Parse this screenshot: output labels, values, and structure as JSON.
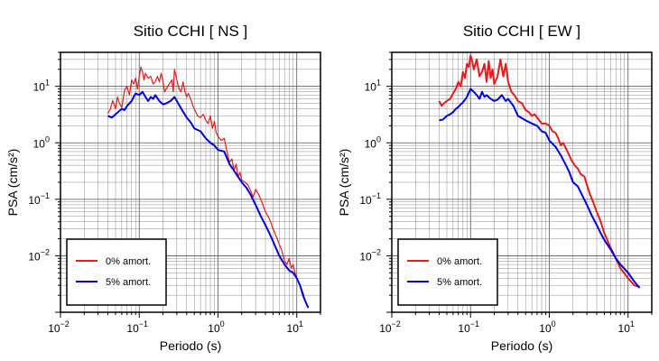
{
  "figure": {
    "background": "#ffffff"
  },
  "chart_data": [
    {
      "type": "line",
      "title": "Sitio CCHI [ NS ]",
      "xlabel": "Periodo (s)",
      "ylabel": "PSA (cm/s²)",
      "x_scale": "log",
      "y_scale": "log",
      "xlim": [
        0.01,
        20
      ],
      "ylim": [
        0.001,
        40
      ],
      "x_ticks": [
        {
          "value": 0.01,
          "base": "10",
          "exp": "−2"
        },
        {
          "value": 0.1,
          "base": "10",
          "exp": "−1"
        },
        {
          "value": 1,
          "base": "10",
          "exp": "0"
        },
        {
          "value": 10,
          "base": "10",
          "exp": "1"
        }
      ],
      "y_ticks": [
        {
          "value": 0.01,
          "base": "10",
          "exp": "−2"
        },
        {
          "value": 0.1,
          "base": "10",
          "exp": "−1"
        },
        {
          "value": 1,
          "base": "10",
          "exp": "0"
        },
        {
          "value": 10,
          "base": "10",
          "exp": "1"
        }
      ],
      "grid": true,
      "legend_position": "bottom-left",
      "series": [
        {
          "name": "0% amort.",
          "color": "#e41a1c",
          "width": 1.2,
          "x": [
            0.04,
            0.043,
            0.046,
            0.05,
            0.053,
            0.056,
            0.06,
            0.065,
            0.07,
            0.075,
            0.08,
            0.085,
            0.09,
            0.095,
            0.1,
            0.105,
            0.11,
            0.115,
            0.12,
            0.13,
            0.14,
            0.15,
            0.16,
            0.17,
            0.18,
            0.19,
            0.2,
            0.21,
            0.22,
            0.24,
            0.26,
            0.27,
            0.28,
            0.3,
            0.32,
            0.34,
            0.36,
            0.38,
            0.4,
            0.42,
            0.45,
            0.48,
            0.5,
            0.55,
            0.6,
            0.65,
            0.7,
            0.75,
            0.8,
            0.85,
            0.9,
            0.95,
            1.0,
            1.1,
            1.2,
            1.3,
            1.4,
            1.5,
            1.6,
            1.7,
            1.8,
            1.9,
            2.0,
            2.2,
            2.4,
            2.6,
            2.8,
            3.0,
            3.3,
            3.6,
            4.0,
            4.5,
            5.0,
            5.5,
            6.0,
            6.5,
            7.0,
            7.5,
            8.0,
            8.5,
            9.0,
            9.5,
            10,
            11,
            12,
            13,
            14
          ],
          "y": [
            3.3,
            4.0,
            5.6,
            4.0,
            6.5,
            5.0,
            4.2,
            8.5,
            10,
            7.0,
            13,
            11,
            14,
            9.0,
            15,
            22,
            18,
            13,
            17,
            14,
            15,
            11,
            12,
            15,
            12,
            17,
            12,
            8.0,
            9.0,
            11,
            13,
            8.0,
            20,
            13,
            9.0,
            8.0,
            12,
            8.0,
            6.5,
            7.5,
            6.0,
            4.5,
            4.0,
            3.0,
            2.8,
            3.2,
            2.5,
            2.2,
            3.0,
            1.8,
            2.4,
            1.5,
            1.3,
            1.1,
            1.2,
            0.7,
            0.45,
            0.52,
            0.32,
            0.42,
            0.25,
            0.3,
            0.22,
            0.2,
            0.18,
            0.14,
            0.11,
            0.15,
            0.12,
            0.09,
            0.06,
            0.045,
            0.03,
            0.022,
            0.016,
            0.012,
            0.008,
            0.007,
            0.009,
            0.006,
            0.007,
            0.005,
            0.004,
            0.003,
            0.0022,
            0.0015,
            0.0012
          ]
        },
        {
          "name": "5% amort.",
          "color": "#0000dd",
          "width": 2,
          "x": [
            0.04,
            0.045,
            0.05,
            0.055,
            0.06,
            0.065,
            0.07,
            0.075,
            0.08,
            0.085,
            0.09,
            0.1,
            0.11,
            0.12,
            0.13,
            0.14,
            0.15,
            0.16,
            0.18,
            0.2,
            0.22,
            0.25,
            0.28,
            0.3,
            0.35,
            0.4,
            0.45,
            0.5,
            0.6,
            0.7,
            0.8,
            0.9,
            1.0,
            1.2,
            1.4,
            1.6,
            1.8,
            2.0,
            2.3,
            2.6,
            3.0,
            3.5,
            4.0,
            4.5,
            5.0,
            6.0,
            7.0,
            8.0,
            9.0,
            10,
            11,
            12,
            13,
            14
          ],
          "y": [
            3.0,
            2.8,
            3.2,
            3.6,
            4.0,
            3.8,
            4.5,
            5.0,
            5.5,
            6.5,
            7.5,
            7.0,
            8.0,
            6.5,
            5.5,
            6.5,
            6.0,
            7.0,
            5.5,
            4.8,
            5.0,
            5.5,
            6.5,
            5.5,
            3.8,
            2.8,
            2.3,
            1.8,
            1.6,
            1.2,
            1.0,
            0.9,
            0.75,
            0.7,
            0.42,
            0.32,
            0.25,
            0.2,
            0.16,
            0.12,
            0.08,
            0.05,
            0.035,
            0.025,
            0.018,
            0.01,
            0.007,
            0.0055,
            0.005,
            0.004,
            0.003,
            0.002,
            0.0015,
            0.0012
          ]
        }
      ]
    },
    {
      "type": "line",
      "title": "Sitio CCHI [ EW ]",
      "xlabel": "Periodo (s)",
      "ylabel": "PSA (cm/s²)",
      "x_scale": "log",
      "y_scale": "log",
      "xlim": [
        0.01,
        20
      ],
      "ylim": [
        0.001,
        40
      ],
      "x_ticks": [
        {
          "value": 0.01,
          "base": "10",
          "exp": "−2"
        },
        {
          "value": 0.1,
          "base": "10",
          "exp": "−1"
        },
        {
          "value": 1,
          "base": "10",
          "exp": "0"
        },
        {
          "value": 10,
          "base": "10",
          "exp": "1"
        }
      ],
      "y_ticks": [
        {
          "value": 0.01,
          "base": "10",
          "exp": "−2"
        },
        {
          "value": 0.1,
          "base": "10",
          "exp": "−1"
        },
        {
          "value": 1,
          "base": "10",
          "exp": "0"
        },
        {
          "value": 10,
          "base": "10",
          "exp": "1"
        }
      ],
      "grid": true,
      "legend_position": "bottom-left",
      "series": [
        {
          "name": "0% amort.",
          "color": "#e41a1c",
          "width": 2,
          "x": [
            0.04,
            0.043,
            0.046,
            0.05,
            0.055,
            0.06,
            0.065,
            0.07,
            0.075,
            0.08,
            0.085,
            0.09,
            0.095,
            0.1,
            0.105,
            0.11,
            0.12,
            0.13,
            0.14,
            0.15,
            0.16,
            0.17,
            0.18,
            0.19,
            0.2,
            0.22,
            0.24,
            0.26,
            0.28,
            0.3,
            0.33,
            0.36,
            0.4,
            0.45,
            0.5,
            0.55,
            0.6,
            0.65,
            0.7,
            0.8,
            0.9,
            1.0,
            1.1,
            1.2,
            1.3,
            1.4,
            1.5,
            1.7,
            1.9,
            2.1,
            2.3,
            2.5,
            2.8,
            3.0,
            3.3,
            3.6,
            4.0,
            4.5,
            5.0,
            6.0,
            7.0,
            8.0,
            10,
            12,
            14
          ],
          "y": [
            5.5,
            4.5,
            5.0,
            5.5,
            6.0,
            7.5,
            9.0,
            12,
            10,
            18,
            14,
            25,
            22,
            35,
            28,
            20,
            30,
            15,
            18,
            25,
            12,
            28,
            14,
            20,
            11,
            15,
            30,
            15,
            25,
            12,
            8.0,
            7.0,
            5.5,
            5.0,
            3.8,
            3.5,
            3.0,
            3.2,
            2.8,
            2.2,
            2.2,
            2.0,
            1.6,
            1.5,
            1.2,
            0.9,
            1.0,
            0.7,
            0.5,
            0.4,
            0.35,
            0.28,
            0.25,
            0.18,
            0.12,
            0.09,
            0.06,
            0.04,
            0.025,
            0.014,
            0.009,
            0.006,
            0.004,
            0.003,
            0.0028
          ]
        },
        {
          "name": "5% amort.",
          "color": "#0000dd",
          "width": 2,
          "x": [
            0.04,
            0.045,
            0.05,
            0.055,
            0.06,
            0.065,
            0.07,
            0.075,
            0.08,
            0.085,
            0.09,
            0.1,
            0.11,
            0.12,
            0.13,
            0.14,
            0.15,
            0.16,
            0.18,
            0.2,
            0.22,
            0.25,
            0.28,
            0.3,
            0.35,
            0.4,
            0.5,
            0.6,
            0.7,
            0.8,
            0.9,
            1.0,
            1.2,
            1.4,
            1.6,
            1.8,
            2.0,
            2.3,
            2.6,
            3.0,
            3.5,
            4.0,
            4.5,
            5.0,
            6.0,
            7.0,
            8.0,
            10,
            12,
            14
          ],
          "y": [
            2.5,
            2.6,
            3.0,
            3.2,
            3.5,
            4.0,
            4.3,
            4.8,
            5.2,
            5.8,
            6.5,
            9.0,
            8.0,
            7.0,
            6.0,
            8.0,
            6.5,
            7.0,
            6.0,
            5.5,
            5.8,
            7.0,
            5.5,
            6.0,
            4.5,
            3.0,
            2.5,
            2.2,
            2.0,
            1.6,
            1.5,
            1.1,
            0.85,
            0.6,
            0.42,
            0.3,
            0.2,
            0.17,
            0.12,
            0.08,
            0.05,
            0.035,
            0.025,
            0.019,
            0.013,
            0.009,
            0.007,
            0.005,
            0.0035,
            0.0027
          ]
        }
      ]
    }
  ]
}
